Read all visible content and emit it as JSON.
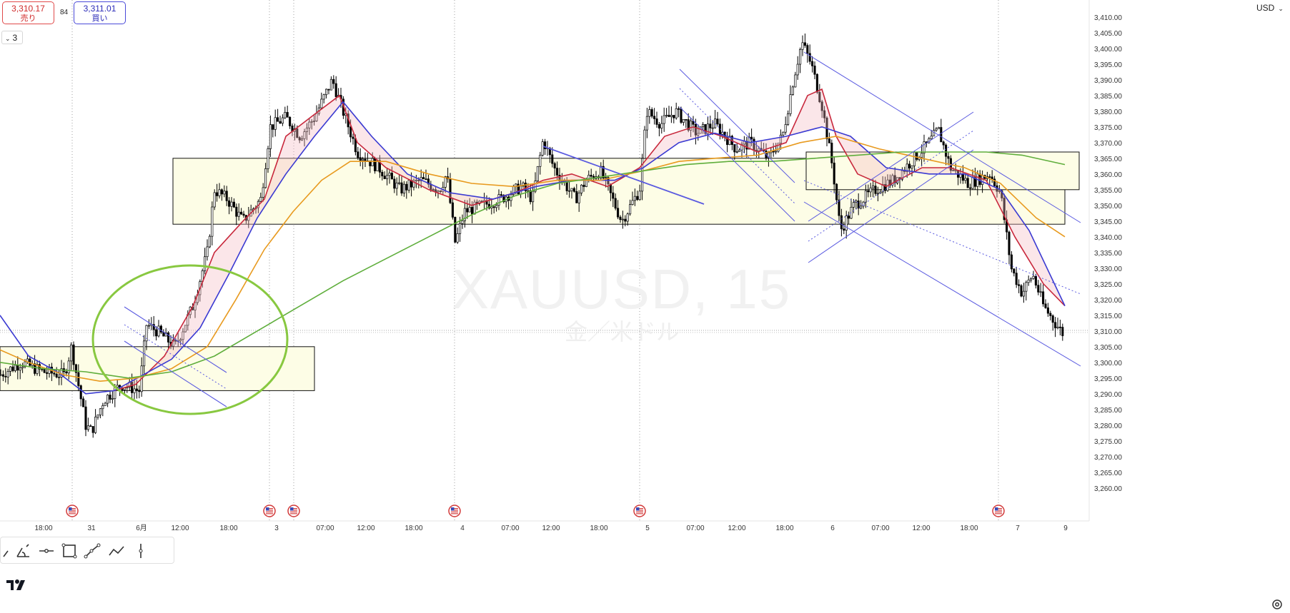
{
  "quote": {
    "sell_price": "3,310.17",
    "sell_label": "売り",
    "spread": "84",
    "buy_price": "3,311.01",
    "buy_label": "買い"
  },
  "indicators_toggle": {
    "count": "3"
  },
  "currency": "USD",
  "watermark": {
    "symbol": "XAUUSD, 15",
    "description": "金／米ドル"
  },
  "colors": {
    "candle": "#000000",
    "ma_fast": "#c8283c",
    "ma_mid": "#3a3ad2",
    "ma_slow": "#e89a1f",
    "ma_long": "#5fae3c",
    "trendline": "#5a5ae0",
    "circle": "#88c840",
    "zone_fill": "#fdfde6",
    "event_flag": "#d23a3a"
  },
  "drawing_tools": [
    "brush-icon",
    "trend-angle-icon",
    "horizontal-line-icon",
    "rectangle-icon",
    "path-icon",
    "polyline-icon",
    "vertical-line-icon"
  ],
  "chart_data": {
    "type": "candlestick",
    "symbol": "XAUUSD",
    "interval": "15",
    "x_labels": [
      "18:00",
      "31",
      "6月",
      "12:00",
      "18:00",
      "3",
      "07:00",
      "12:00",
      "18:00",
      "4",
      "07:00",
      "12:00",
      "18:00",
      "5",
      "07:00",
      "12:00",
      "18:00",
      "6",
      "07:00",
      "12:00",
      "18:00",
      "7",
      "9"
    ],
    "y_ticks": [
      "3,410.00",
      "3,405.00",
      "3,400.00",
      "3,395.00",
      "3,390.00",
      "3,385.00",
      "3,380.00",
      "3,375.00",
      "3,370.00",
      "3,365.00",
      "3,360.00",
      "3,355.00",
      "3,350.00",
      "3,345.00",
      "3,340.00",
      "3,335.00",
      "3,330.00",
      "3,325.00",
      "3,320.00",
      "3,315.00",
      "3,310.00",
      "3,305.00",
      "3,300.00",
      "3,295.00",
      "3,290.00",
      "3,285.00",
      "3,280.00",
      "3,275.00",
      "3,270.00",
      "3,265.00",
      "3,260.00"
    ],
    "ylim": [
      3256,
      3412
    ],
    "current_price": 3310.2,
    "price_path": [
      [
        0,
        3296
      ],
      [
        30,
        3300
      ],
      [
        60,
        3297
      ],
      [
        90,
        3296
      ],
      [
        100,
        3305
      ],
      [
        112,
        3290
      ],
      [
        120,
        3280
      ],
      [
        128,
        3278
      ],
      [
        145,
        3288
      ],
      [
        170,
        3293
      ],
      [
        195,
        3291
      ],
      [
        205,
        3312
      ],
      [
        220,
        3310
      ],
      [
        245,
        3305
      ],
      [
        270,
        3318
      ],
      [
        290,
        3335
      ],
      [
        300,
        3355
      ],
      [
        318,
        3352
      ],
      [
        340,
        3345
      ],
      [
        365,
        3352
      ],
      [
        378,
        3375
      ],
      [
        400,
        3378
      ],
      [
        420,
        3372
      ],
      [
        440,
        3378
      ],
      [
        465,
        3390
      ],
      [
        480,
        3380
      ],
      [
        500,
        3367
      ],
      [
        530,
        3362
      ],
      [
        560,
        3355
      ],
      [
        590,
        3358
      ],
      [
        615,
        3355
      ],
      [
        625,
        3360
      ],
      [
        637,
        3338
      ],
      [
        650,
        3348
      ],
      [
        675,
        3350
      ],
      [
        700,
        3352
      ],
      [
        730,
        3356
      ],
      [
        745,
        3352
      ],
      [
        760,
        3371
      ],
      [
        775,
        3362
      ],
      [
        790,
        3357
      ],
      [
        805,
        3352
      ],
      [
        820,
        3358
      ],
      [
        840,
        3361
      ],
      [
        870,
        3345
      ],
      [
        895,
        3355
      ],
      [
        905,
        3380
      ],
      [
        925,
        3376
      ],
      [
        945,
        3380
      ],
      [
        975,
        3373
      ],
      [
        1000,
        3376
      ],
      [
        1030,
        3368
      ],
      [
        1050,
        3370
      ],
      [
        1075,
        3365
      ],
      [
        1095,
        3372
      ],
      [
        1110,
        3390
      ],
      [
        1122,
        3402
      ],
      [
        1135,
        3395
      ],
      [
        1150,
        3382
      ],
      [
        1165,
        3362
      ],
      [
        1176,
        3342
      ],
      [
        1195,
        3350
      ],
      [
        1225,
        3355
      ],
      [
        1250,
        3358
      ],
      [
        1275,
        3364
      ],
      [
        1300,
        3370
      ],
      [
        1313,
        3374
      ],
      [
        1330,
        3362
      ],
      [
        1355,
        3357
      ],
      [
        1385,
        3360
      ],
      [
        1400,
        3354
      ],
      [
        1415,
        3330
      ],
      [
        1430,
        3322
      ],
      [
        1445,
        3328
      ],
      [
        1460,
        3318
      ],
      [
        1475,
        3313
      ],
      [
        1488,
        3309
      ]
    ],
    "moving_averages": [
      {
        "color": "ma_fast",
        "points": [
          [
            160,
            3291
          ],
          [
            190,
            3293
          ],
          [
            230,
            3302
          ],
          [
            270,
            3318
          ],
          [
            300,
            3335
          ],
          [
            340,
            3345
          ],
          [
            370,
            3352
          ],
          [
            400,
            3372
          ],
          [
            440,
            3379
          ],
          [
            475,
            3385
          ],
          [
            500,
            3370
          ],
          [
            540,
            3362
          ],
          [
            600,
            3355
          ],
          [
            660,
            3350
          ],
          [
            720,
            3354
          ],
          [
            760,
            3358
          ],
          [
            800,
            3360
          ],
          [
            850,
            3356
          ],
          [
            895,
            3362
          ],
          [
            930,
            3372
          ],
          [
            970,
            3375
          ],
          [
            1010,
            3372
          ],
          [
            1060,
            3367
          ],
          [
            1100,
            3370
          ],
          [
            1130,
            3385
          ],
          [
            1150,
            3387
          ],
          [
            1170,
            3372
          ],
          [
            1200,
            3360
          ],
          [
            1240,
            3356
          ],
          [
            1290,
            3362
          ],
          [
            1330,
            3362
          ],
          [
            1380,
            3358
          ],
          [
            1420,
            3340
          ],
          [
            1460,
            3325
          ],
          [
            1490,
            3318
          ]
        ]
      },
      {
        "color": "ma_mid",
        "points": [
          [
            0,
            3315
          ],
          [
            40,
            3302
          ],
          [
            80,
            3297
          ],
          [
            120,
            3290
          ],
          [
            160,
            3291
          ],
          [
            200,
            3296
          ],
          [
            240,
            3301
          ],
          [
            280,
            3311
          ],
          [
            320,
            3328
          ],
          [
            360,
            3346
          ],
          [
            400,
            3360
          ],
          [
            440,
            3372
          ],
          [
            480,
            3383
          ],
          [
            520,
            3372
          ],
          [
            570,
            3360
          ],
          [
            630,
            3354
          ],
          [
            690,
            3352
          ],
          [
            750,
            3356
          ],
          [
            800,
            3358
          ],
          [
            860,
            3358
          ],
          [
            900,
            3362
          ],
          [
            950,
            3370
          ],
          [
            1000,
            3373
          ],
          [
            1050,
            3370
          ],
          [
            1100,
            3372
          ],
          [
            1150,
            3375
          ],
          [
            1190,
            3372
          ],
          [
            1240,
            3362
          ],
          [
            1300,
            3360
          ],
          [
            1350,
            3360
          ],
          [
            1400,
            3355
          ],
          [
            1440,
            3342
          ],
          [
            1490,
            3318
          ]
        ]
      },
      {
        "color": "ma_slow",
        "points": [
          [
            0,
            3304
          ],
          [
            40,
            3300
          ],
          [
            90,
            3296
          ],
          [
            140,
            3294
          ],
          [
            190,
            3295
          ],
          [
            240,
            3298
          ],
          [
            290,
            3305
          ],
          [
            330,
            3320
          ],
          [
            370,
            3336
          ],
          [
            410,
            3348
          ],
          [
            450,
            3358
          ],
          [
            490,
            3364
          ],
          [
            540,
            3364
          ],
          [
            600,
            3360
          ],
          [
            660,
            3357
          ],
          [
            720,
            3356
          ],
          [
            780,
            3358
          ],
          [
            840,
            3358
          ],
          [
            900,
            3361
          ],
          [
            950,
            3364
          ],
          [
            1000,
            3365
          ],
          [
            1060,
            3366
          ],
          [
            1120,
            3370
          ],
          [
            1170,
            3372
          ],
          [
            1230,
            3368
          ],
          [
            1290,
            3365
          ],
          [
            1350,
            3362
          ],
          [
            1400,
            3357
          ],
          [
            1450,
            3346
          ],
          [
            1490,
            3340
          ]
        ]
      },
      {
        "color": "ma_long",
        "points": [
          [
            0,
            3300
          ],
          [
            60,
            3298
          ],
          [
            120,
            3297
          ],
          [
            180,
            3295
          ],
          [
            240,
            3297
          ],
          [
            300,
            3302
          ],
          [
            360,
            3310
          ],
          [
            420,
            3318
          ],
          [
            480,
            3326
          ],
          [
            540,
            3333
          ],
          [
            600,
            3340
          ],
          [
            660,
            3347
          ],
          [
            720,
            3353
          ],
          [
            780,
            3357
          ],
          [
            840,
            3359
          ],
          [
            900,
            3361
          ],
          [
            960,
            3363
          ],
          [
            1020,
            3364
          ],
          [
            1080,
            3364
          ],
          [
            1140,
            3365
          ],
          [
            1200,
            3366
          ],
          [
            1260,
            3367
          ],
          [
            1320,
            3367
          ],
          [
            1380,
            3367
          ],
          [
            1430,
            3366
          ],
          [
            1490,
            3363
          ]
        ]
      }
    ],
    "zones": [
      {
        "x_start": 0,
        "x_end": 440,
        "top": 3305,
        "bottom": 3291
      },
      {
        "x_start": 242,
        "x_end": 1490,
        "top": 3365,
        "bottom": 3344
      },
      {
        "x_start": 1128,
        "x_end": 1510,
        "top": 3367,
        "bottom": 3355
      }
    ]
  }
}
